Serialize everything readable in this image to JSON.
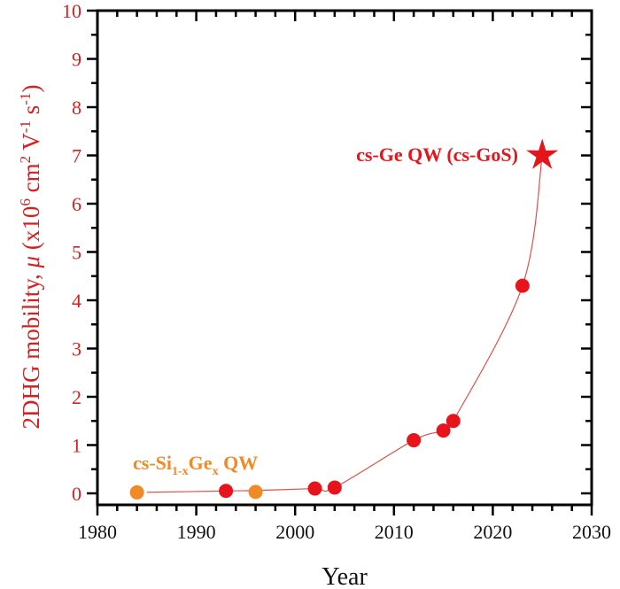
{
  "chart_data": {
    "type": "scatter",
    "xlabel": "Year",
    "ylabel": "2DHG mobility, μ (x10⁶ cm² V⁻¹ s⁻¹)",
    "xlim": [
      1980,
      2030
    ],
    "ylim": [
      -0.25,
      10
    ],
    "xticks": [
      "1980",
      "1990",
      "2000",
      "2010",
      "2020",
      "2030"
    ],
    "yticks": [
      "0",
      "1",
      "2",
      "3",
      "4",
      "5",
      "6",
      "7",
      "8",
      "9",
      "10"
    ],
    "grid": false,
    "series": [
      {
        "name": "cs-Si1-xGex QW",
        "color": "#f08a24",
        "marker": "circle",
        "x": [
          1984,
          1996
        ],
        "y": [
          0.02,
          0.03
        ]
      },
      {
        "name": "cs-Ge QW",
        "color": "#e8141c",
        "marker": "circle",
        "x": [
          1993,
          2002,
          2004,
          2012,
          2015,
          2016,
          2023
        ],
        "y": [
          0.05,
          0.1,
          0.12,
          1.1,
          1.3,
          1.5,
          4.3
        ]
      },
      {
        "name": "cs-Ge QW (cs-GoS)",
        "color": "#e8141c",
        "marker": "star",
        "x": [
          2025
        ],
        "y": [
          7.0
        ]
      }
    ],
    "trend_line": {
      "color": "#e0504a",
      "x": [
        1985,
        1993,
        1996,
        2002,
        2004,
        2012,
        2015,
        2016,
        2023,
        2025
      ],
      "y": [
        0.02,
        0.05,
        0.06,
        0.1,
        0.12,
        1.1,
        1.3,
        1.5,
        4.3,
        7.0
      ]
    },
    "annotations": {
      "sige": {
        "base": "cs-Si",
        "sub1": "1-x",
        "mid": "Ge",
        "sub2": "x",
        "tail": " QW",
        "color": "#f08a24"
      },
      "gos": {
        "text": "cs-Ge QW (cs-GoS)",
        "color": "#e8141c"
      }
    },
    "ylabel_parts": {
      "a": "2DHG mobility, ",
      "mu": "μ",
      "b": " (x10",
      "e1": "6",
      "c": " cm",
      "e2": "2",
      "d": " V",
      "e3": "-1",
      "e": " s",
      "e4": "-1",
      "f": ")"
    }
  }
}
